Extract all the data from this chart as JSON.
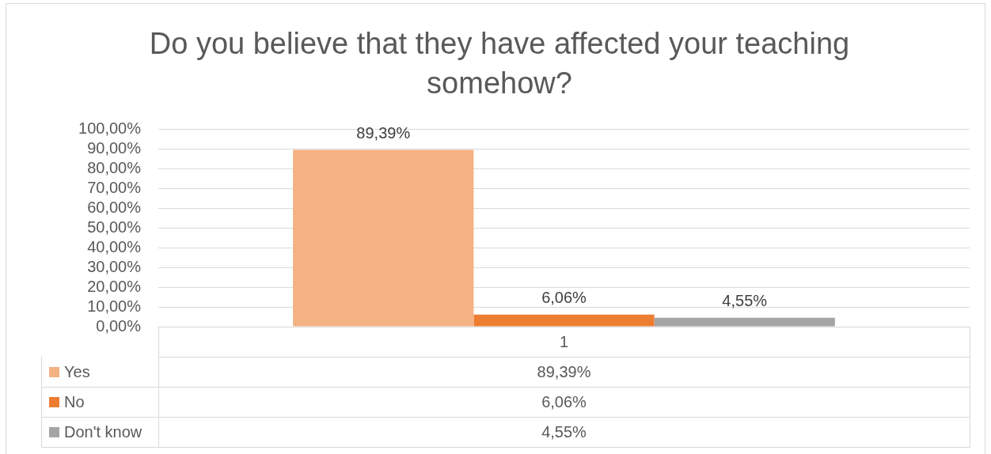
{
  "chart_data": {
    "type": "bar",
    "title": "Do you believe that they have affected your teaching somehow?",
    "categories": [
      "1"
    ],
    "series": [
      {
        "name": "Yes",
        "color": "#f4b183",
        "values": [
          89.39
        ],
        "value_labels": [
          "89,39%"
        ]
      },
      {
        "name": "No",
        "color": "#ed7d31",
        "values": [
          6.06
        ],
        "value_labels": [
          "6,06%"
        ]
      },
      {
        "name": "Don't know",
        "color": "#a5a5a5",
        "values": [
          4.55
        ],
        "value_labels": [
          "4,55%"
        ]
      }
    ],
    "ylim": [
      0,
      100
    ],
    "yticks": [
      {
        "value": 0,
        "label": "0,00%"
      },
      {
        "value": 10,
        "label": "10,00%"
      },
      {
        "value": 20,
        "label": "20,00%"
      },
      {
        "value": 30,
        "label": "30,00%"
      },
      {
        "value": 40,
        "label": "40,00%"
      },
      {
        "value": 50,
        "label": "50,00%"
      },
      {
        "value": 60,
        "label": "60,00%"
      },
      {
        "value": 70,
        "label": "70,00%"
      },
      {
        "value": 80,
        "label": "80,00%"
      },
      {
        "value": 90,
        "label": "90,00%"
      },
      {
        "value": 100,
        "label": "100,00%"
      }
    ],
    "grid": "y",
    "legend": "bottom"
  }
}
